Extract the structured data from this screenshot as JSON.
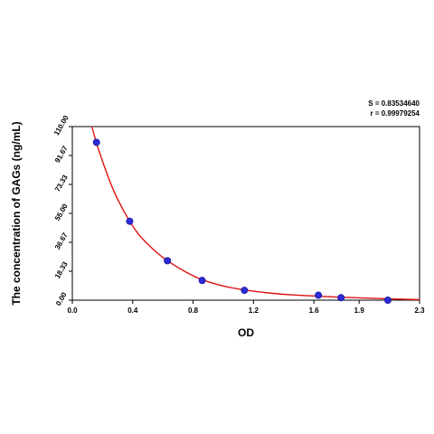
{
  "stats": {
    "s_text": "S = 0.83534640",
    "r_text": "r = 0.99979254"
  },
  "chart_data": {
    "type": "scatter",
    "title": "",
    "xlabel": "OD",
    "ylabel": "The concentration of GAGs (ng/mL)",
    "xlim": [
      0,
      2.3
    ],
    "ylim": [
      0,
      110
    ],
    "xticks": [
      "0.0",
      "0.4",
      "0.8",
      "1.2",
      "1.6",
      "1.9",
      "2.3"
    ],
    "xtick_values": [
      0.0,
      0.4,
      0.8,
      1.2,
      1.6,
      1.9,
      2.3
    ],
    "yticks": [
      "0.00",
      "18.33",
      "36.67",
      "55.00",
      "73.33",
      "91.67",
      "110.00"
    ],
    "ytick_values": [
      0.0,
      18.33,
      36.67,
      55.0,
      73.33,
      91.67,
      110.0
    ],
    "grid": false,
    "colors": {
      "curve": "#dd1111",
      "point": "#2b2bd8",
      "point_edge": "#1a1a9a"
    },
    "series": [
      {
        "kind": "points",
        "x": [
          0.16,
          0.38,
          0.63,
          0.86,
          1.14,
          1.63,
          1.78,
          2.09
        ],
        "y": [
          100,
          50,
          25,
          12.5,
          6.25,
          3.12,
          1.56,
          0
        ]
      },
      {
        "kind": "fit-curve",
        "x": [
          0.13,
          0.16,
          0.2,
          0.25,
          0.3,
          0.38,
          0.45,
          0.55,
          0.63,
          0.75,
          0.86,
          1.0,
          1.14,
          1.3,
          1.45,
          1.63,
          1.78,
          1.95,
          2.09,
          2.2,
          2.3
        ],
        "y": [
          110,
          99.5,
          88,
          75,
          64,
          50,
          40.5,
          31,
          25,
          18,
          13,
          9,
          6.5,
          4.6,
          3.4,
          2.5,
          1.9,
          1.3,
          0.9,
          0.6,
          0.3
        ]
      }
    ]
  }
}
